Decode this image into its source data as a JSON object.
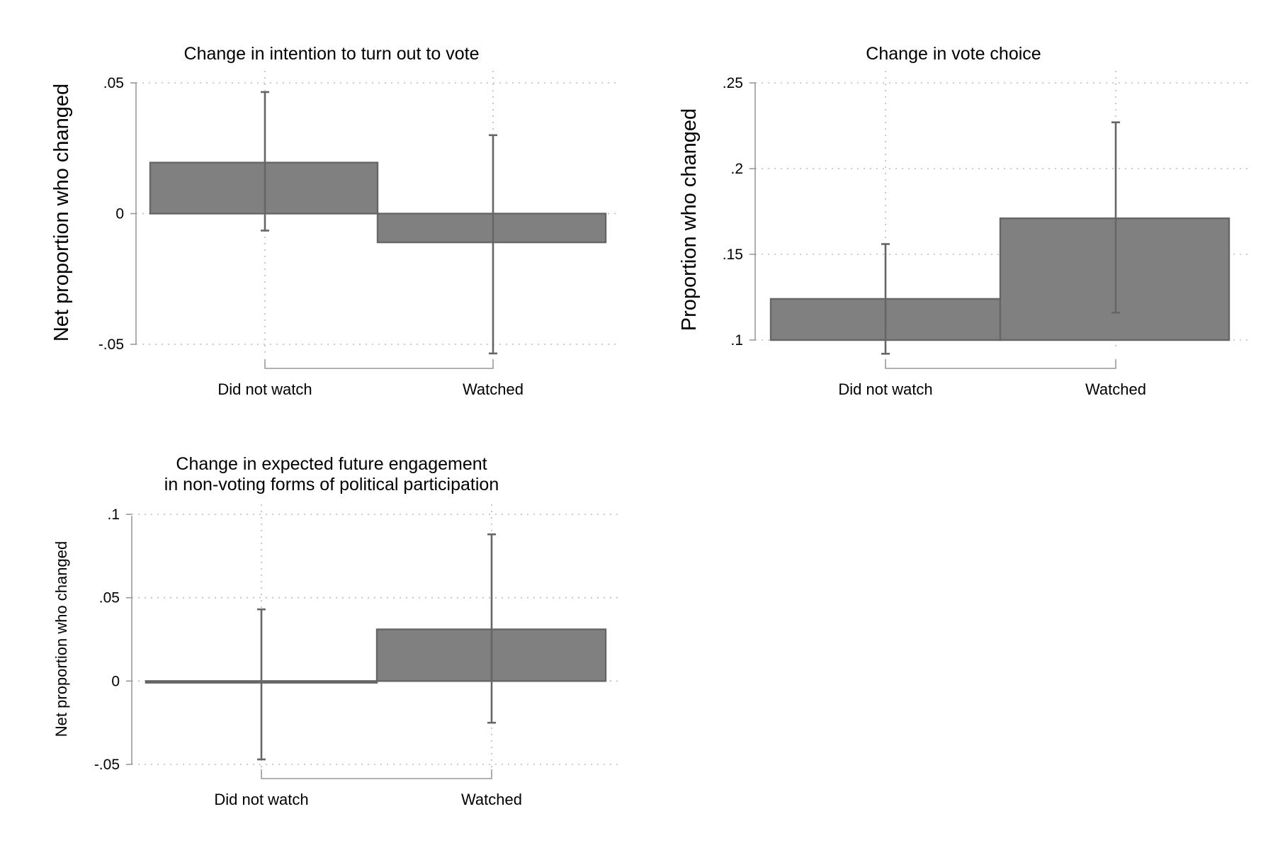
{
  "colors": {
    "bar_fill": "#808080",
    "bar_edge": "#666666",
    "error_bar": "#666666",
    "grid": "#bbbbbb",
    "axis": "#999999"
  },
  "chart_data": [
    {
      "type": "bar",
      "title": [
        "Change in intention to turn out to vote"
      ],
      "ylabel": "Net proportion who changed",
      "xlabel": "",
      "categories": [
        "Did not watch",
        "Watched"
      ],
      "values": [
        0.0195,
        -0.011
      ],
      "ci_low": [
        -0.0065,
        -0.0535
      ],
      "ci_high": [
        0.0465,
        0.03
      ],
      "ylim": [
        -0.05,
        0.05
      ],
      "yticks": [
        {
          "v": -0.05,
          "label": "-.05"
        },
        {
          "v": 0,
          "label": "0"
        },
        {
          "v": 0.05,
          "label": ".05"
        }
      ],
      "grid": true
    },
    {
      "type": "bar",
      "title": [
        "Change in vote choice"
      ],
      "ylabel": "Proportion who changed",
      "xlabel": "",
      "categories": [
        "Did not watch",
        "Watched"
      ],
      "values": [
        0.124,
        0.171
      ],
      "ci_low": [
        0.092,
        0.116
      ],
      "ci_high": [
        0.156,
        0.227
      ],
      "ylim": [
        0.1,
        0.25
      ],
      "yticks": [
        {
          "v": 0.1,
          "label": ".1"
        },
        {
          "v": 0.15,
          "label": ".15"
        },
        {
          "v": 0.2,
          "label": ".2"
        },
        {
          "v": 0.25,
          "label": ".25"
        }
      ],
      "grid": true
    },
    {
      "type": "bar",
      "title": [
        "Change in expected future engagement",
        "in non-voting forms of political participation"
      ],
      "ylabel": "Net proportion who changed",
      "xlabel": "",
      "categories": [
        "Did not watch",
        "Watched"
      ],
      "values": [
        -0.001,
        0.031
      ],
      "ci_low": [
        -0.047,
        -0.025
      ],
      "ci_high": [
        0.043,
        0.088
      ],
      "ylim": [
        -0.05,
        0.1
      ],
      "yticks": [
        {
          "v": -0.05,
          "label": "-.05"
        },
        {
          "v": 0,
          "label": "0"
        },
        {
          "v": 0.05,
          "label": ".05"
        },
        {
          "v": 0.1,
          "label": ".1"
        }
      ],
      "grid": true
    }
  ]
}
